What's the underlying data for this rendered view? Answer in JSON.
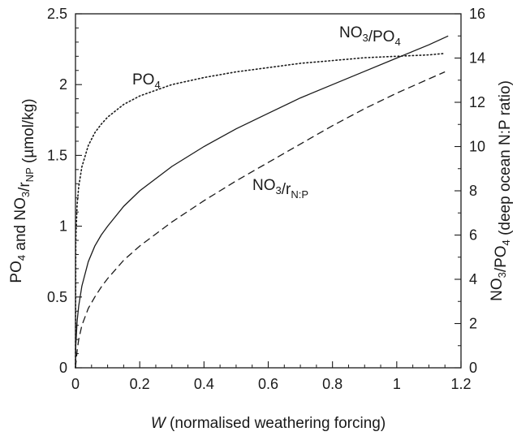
{
  "chart_data": {
    "type": "line",
    "xlabel": {
      "italic": "W",
      "rest": " (normalised weathering forcing)"
    },
    "ylabel_left": {
      "parts": [
        [
          "PO",
          ""
        ],
        [
          "4",
          "sub"
        ],
        [
          " and NO",
          ""
        ],
        [
          "3",
          "sub"
        ],
        [
          "/r",
          ""
        ],
        [
          "NP",
          "sub"
        ],
        [
          " (µmol/kg)",
          ""
        ]
      ]
    },
    "ylabel_right": {
      "parts": [
        [
          "NO",
          ""
        ],
        [
          "3",
          "sub"
        ],
        [
          "/PO",
          ""
        ],
        [
          "4",
          "sub"
        ],
        [
          " (deep ocean N:P ratio)",
          ""
        ]
      ]
    },
    "xlim": [
      0,
      1.2
    ],
    "ylim_left": [
      0,
      2.5
    ],
    "ylim_right": [
      0,
      16
    ],
    "x_ticks": [
      "0",
      "0.2",
      "0.4",
      "0.6",
      "0.8",
      "1",
      "1.2"
    ],
    "y_left_ticks": [
      "0",
      "0.5",
      "1",
      "1.5",
      "2",
      "2.5"
    ],
    "y_right_ticks": [
      "0",
      "2",
      "4",
      "6",
      "8",
      "10",
      "12",
      "14",
      "16"
    ],
    "series": [
      {
        "name": "PO4",
        "label_parts": [
          [
            "PO",
            ""
          ],
          [
            "4",
            "sub"
          ]
        ],
        "axis": "left",
        "style": "dotted",
        "x": [
          0,
          0.001,
          0.005,
          0.01,
          0.02,
          0.04,
          0.06,
          0.08,
          0.1,
          0.15,
          0.2,
          0.3,
          0.4,
          0.5,
          0.6,
          0.7,
          0.8,
          0.9,
          1.0,
          1.1,
          1.15
        ],
        "y": [
          0,
          0.9,
          1.15,
          1.28,
          1.42,
          1.57,
          1.66,
          1.72,
          1.77,
          1.86,
          1.92,
          2.0,
          2.05,
          2.09,
          2.12,
          2.15,
          2.17,
          2.19,
          2.2,
          2.21,
          2.22
        ]
      },
      {
        "name": "NO3/PO4",
        "label_parts": [
          [
            "NO",
            ""
          ],
          [
            "3",
            "sub"
          ],
          [
            "/PO",
            ""
          ],
          [
            "4",
            "sub"
          ]
        ],
        "axis": "right",
        "style": "solid",
        "x": [
          0,
          0.001,
          0.005,
          0.01,
          0.02,
          0.04,
          0.06,
          0.08,
          0.1,
          0.15,
          0.2,
          0.3,
          0.4,
          0.5,
          0.6,
          0.7,
          0.8,
          0.9,
          1.0,
          1.1,
          1.16
        ],
        "y": [
          0,
          1.0,
          2.1,
          2.8,
          3.7,
          4.8,
          5.5,
          6.0,
          6.4,
          7.3,
          8.0,
          9.1,
          10.0,
          10.8,
          11.5,
          12.2,
          12.8,
          13.4,
          14.0,
          14.6,
          15.0
        ]
      },
      {
        "name": "NO3/rN:P",
        "label_parts": [
          [
            "NO",
            ""
          ],
          [
            "3",
            "sub"
          ],
          [
            "/r",
            ""
          ],
          [
            "N:P",
            "sub"
          ]
        ],
        "axis": "left",
        "style": "dashed",
        "x": [
          0,
          0.005,
          0.01,
          0.02,
          0.04,
          0.06,
          0.08,
          0.1,
          0.15,
          0.2,
          0.3,
          0.4,
          0.5,
          0.6,
          0.7,
          0.8,
          0.9,
          1.0,
          1.1,
          1.15
        ],
        "y": [
          0,
          0.12,
          0.2,
          0.3,
          0.42,
          0.5,
          0.57,
          0.63,
          0.76,
          0.86,
          1.03,
          1.18,
          1.32,
          1.45,
          1.58,
          1.71,
          1.83,
          1.94,
          2.04,
          2.09
        ]
      }
    ]
  }
}
